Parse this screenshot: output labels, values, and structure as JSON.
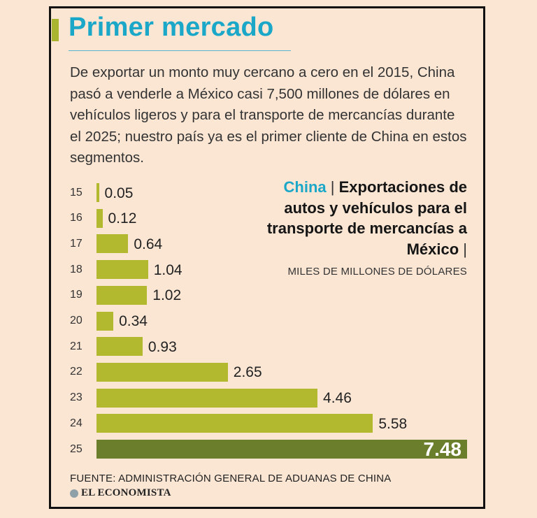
{
  "header": {
    "title": "Primer mercado",
    "intro": "De exportar un monto muy cercano a cero en el 2015, China pasó a venderle a México casi 7,500 millones de dólares en vehículos ligeros y para el transporte de mercancías durante el 2025; nuestro país ya es el primer cliente de China en estos segmentos."
  },
  "chart_data": {
    "type": "bar",
    "orientation": "horizontal",
    "title_country": "China",
    "title_separator": "|",
    "title": "Exportaciones de autos y vehículos para el transporte de mercancías a México",
    "title_trailing_separator": "|",
    "subtitle": "MILES DE MILLONES DE DÓLARES",
    "categories": [
      "15",
      "16",
      "17",
      "18",
      "19",
      "20",
      "21",
      "22",
      "23",
      "24",
      "25"
    ],
    "values": [
      0.05,
      0.12,
      0.64,
      1.04,
      1.02,
      0.34,
      0.93,
      2.65,
      4.46,
      5.58,
      7.48
    ],
    "value_labels": [
      "0.05",
      "0.12",
      "0.64",
      "1.04",
      "1.02",
      "0.34",
      "0.93",
      "2.65",
      "4.46",
      "5.58",
      "7.48"
    ],
    "xlim": [
      0,
      7.48
    ],
    "grid": false,
    "colors": {
      "bar": "#b2b92f",
      "highlight": "#6a7e2b"
    }
  },
  "footer": {
    "source": "FUENTE: ADMINISTRACIÓN GENERAL DE ADUANAS DE CHINA",
    "brand_icon": "globe-icon",
    "brand": "EL ECONOMISTA"
  }
}
